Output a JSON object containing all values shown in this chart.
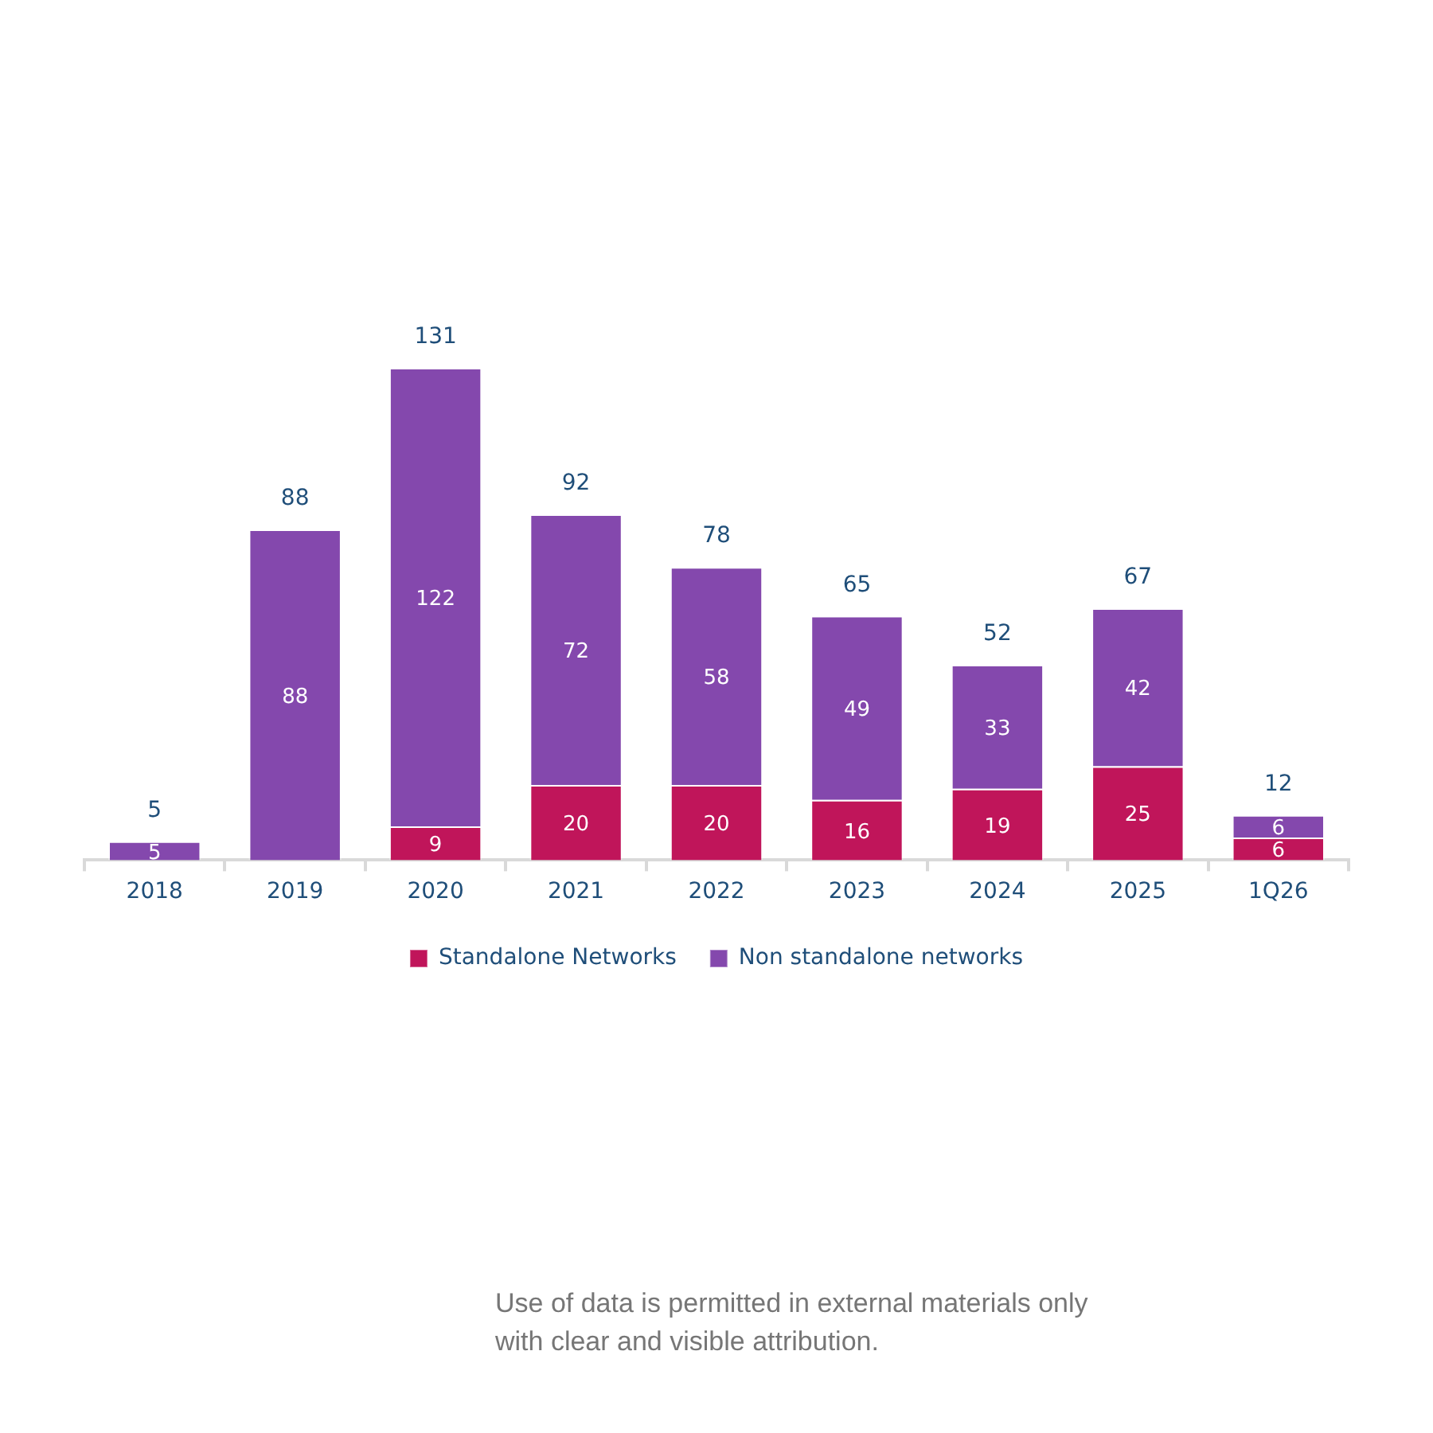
{
  "chart_data": {
    "type": "bar",
    "stacked": true,
    "categories": [
      "2018",
      "2019",
      "2020",
      "2021",
      "2022",
      "2023",
      "2024",
      "2025",
      "1Q26"
    ],
    "series": [
      {
        "name": "Standalone Networks",
        "color": "#c0155a",
        "values": [
          null,
          null,
          9,
          20,
          20,
          16,
          19,
          25,
          6
        ]
      },
      {
        "name": "Non standalone networks",
        "color": "#8448ad",
        "values": [
          5,
          88,
          122,
          72,
          58,
          49,
          33,
          42,
          6
        ]
      }
    ],
    "data_labels": true,
    "totals": [
      "5",
      "88",
      "131",
      "92",
      "78",
      "65",
      "52",
      "67",
      "12"
    ],
    "legend": "bottom",
    "tick_labels": "x",
    "annotations": [
      "Use of data is permitted in external materials only with clear and visible attribution."
    ]
  }
}
